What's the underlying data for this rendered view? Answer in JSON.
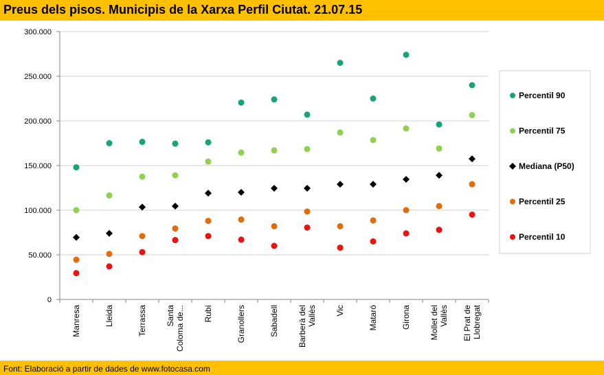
{
  "title": "Preus dels pisos. Municipis de la Xarxa Perfil Ciutat. 21.07.15",
  "source": "Font: Elaboració a partir de dades de www.fotocasa.com",
  "chart_data": {
    "type": "scatter",
    "title": "Preus dels pisos. Municipis de la Xarxa Perfil Ciutat. 21.07.15",
    "categories": [
      [
        "Manresa"
      ],
      [
        "Lleida"
      ],
      [
        "Terrassa"
      ],
      [
        "Santa",
        "Coloma de..."
      ],
      [
        "Rubí"
      ],
      [
        "Granollers"
      ],
      [
        "Sabadell"
      ],
      [
        "Barberà del",
        "Vallès"
      ],
      [
        "Vic"
      ],
      [
        "Mataró"
      ],
      [
        "Girona"
      ],
      [
        "Mollet del",
        "Vallès"
      ],
      [
        "El Prat de",
        "Llobregat"
      ]
    ],
    "yticks": [
      "0",
      "50.000",
      "100.000",
      "150.000",
      "200.000",
      "250.000",
      "300.000"
    ],
    "ylim": [
      0,
      300000
    ],
    "grid": true,
    "legend_position": "right",
    "series": [
      {
        "name": "Percentil 90",
        "color": "#17a673",
        "marker": "circle",
        "values": [
          148000,
          175000,
          176500,
          174500,
          176000,
          220500,
          224000,
          207000,
          265000,
          225000,
          274000,
          196000,
          240000
        ]
      },
      {
        "name": "Percentil 75",
        "color": "#92d050",
        "marker": "circle",
        "values": [
          100000,
          116500,
          137500,
          139000,
          154500,
          164500,
          167000,
          168500,
          187000,
          178500,
          191500,
          169000,
          206500
        ]
      },
      {
        "name": "Mediana (P50)",
        "color": "#000000",
        "marker": "diamond",
        "values": [
          69500,
          74000,
          103500,
          104500,
          119000,
          120000,
          124500,
          124500,
          129000,
          129000,
          134500,
          139000,
          157500
        ]
      },
      {
        "name": "Percentil 25",
        "color": "#e36c09",
        "marker": "circle",
        "values": [
          44500,
          51000,
          71000,
          79500,
          88000,
          89500,
          82000,
          98500,
          82000,
          88500,
          100000,
          104500,
          129000
        ]
      },
      {
        "name": "Percentil 10",
        "color": "#ee1111",
        "marker": "circle",
        "values": [
          29500,
          37000,
          53000,
          66500,
          71000,
          67000,
          60000,
          80500,
          58000,
          65000,
          74000,
          78000,
          95000
        ]
      }
    ]
  }
}
